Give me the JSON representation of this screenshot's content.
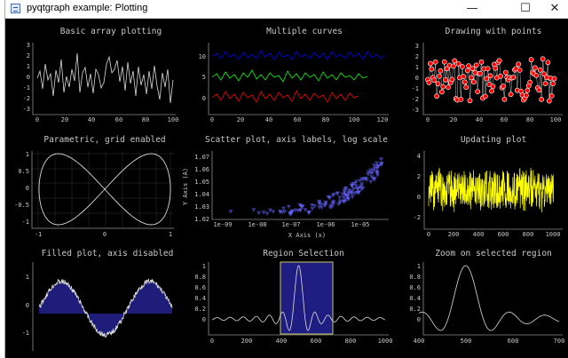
{
  "window": {
    "title": "pyqtgraph example: Plotting",
    "controls": {
      "minimize": "—",
      "maximize": "☐",
      "close": "✕"
    }
  },
  "plots": [
    {
      "title": "Basic array plotting",
      "x_ticks": [
        "0",
        "20",
        "40",
        "60",
        "80",
        "100"
      ],
      "y_ticks": [
        "3",
        "2",
        "1",
        "0",
        "-1",
        "-2",
        "-3"
      ]
    },
    {
      "title": "Multiple curves",
      "x_ticks": [
        "0",
        "20",
        "40",
        "60",
        "80",
        "100",
        "120"
      ],
      "y_ticks": [
        "10",
        "5",
        "0"
      ],
      "series_colors": [
        "#0000ff",
        "#00ff00",
        "#ff0000"
      ]
    },
    {
      "title": "Drawing with points",
      "x_ticks": [
        "0",
        "20",
        "40",
        "60",
        "80",
        "100"
      ],
      "y_ticks": [
        "3",
        "2",
        "1",
        "0",
        "-1",
        "-2",
        "-3"
      ],
      "symbol_fill": "#ff0000",
      "symbol_edge": "#ffffff"
    },
    {
      "title": "Parametric, grid enabled",
      "x_ticks": [
        "-1",
        "0",
        "1"
      ],
      "y_ticks": [
        "1",
        "0.5",
        "0",
        "-0.5",
        "-1"
      ]
    },
    {
      "title": "Scatter plot, axis labels, log scale",
      "x_ticks": [
        "1e-09",
        "1e-08",
        "1e-07",
        "1e-06",
        "1e-05"
      ],
      "y_ticks": [
        "1.07",
        "1.06",
        "1.05",
        "1.04",
        "1.03",
        "1.02"
      ],
      "xlabel": "X Axis (x)",
      "ylabel": "Y Axis (A)",
      "point_color": "#6464ff"
    },
    {
      "title": "Updating plot",
      "x_ticks": [
        "0",
        "200",
        "400",
        "600",
        "800",
        "1000"
      ],
      "y_ticks": [
        "4",
        "2",
        "0",
        "-2"
      ],
      "curve_color": "#ffff00"
    },
    {
      "title": "Filled plot, axis disabled",
      "y_ticks": [
        "1",
        "0",
        "-1"
      ],
      "fill_color": "#1e1e7a"
    },
    {
      "title": "Region Selection",
      "x_ticks": [
        "0",
        "200",
        "400",
        "600",
        "800",
        "1000"
      ],
      "y_ticks": [
        "1",
        "0.8",
        "0.6",
        "0.4",
        "0.2",
        "0"
      ],
      "region": [
        400,
        700
      ],
      "region_color": "#1e1e82"
    },
    {
      "title": "Zoom on selected region",
      "x_ticks": [
        "400",
        "500",
        "600",
        "700"
      ],
      "y_ticks": [
        "1",
        "0.8",
        "0.6",
        "0.4",
        "0.2",
        "0"
      ]
    }
  ]
}
